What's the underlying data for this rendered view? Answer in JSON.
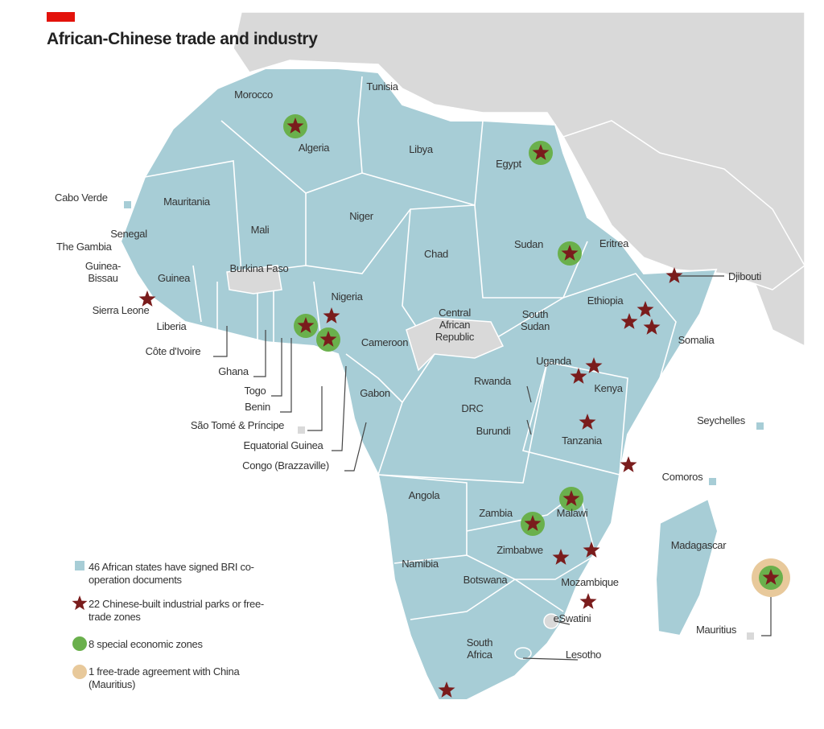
{
  "title": "African-Chinese trade and industry",
  "labels": [
    "Morocco",
    "Tunisia",
    "Algeria",
    "Libya",
    "Egypt",
    "Cabo Verde",
    "Mauritania",
    "Mali",
    "Senegal",
    "The Gambia",
    "Guinea-Bissau",
    "Niger",
    "Chad",
    "Sudan",
    "Eritrea",
    "Djibouti",
    "Burkina Faso",
    "Guinea",
    "Sierra Leone",
    "Nigeria",
    "Liberia",
    "Central African Republic",
    "South Sudan",
    "Ethiopia",
    "Somalia",
    "Côte d'Ivoire",
    "Cameroon",
    "Ghana",
    "Uganda",
    "Togo",
    "Kenya",
    "Rwanda",
    "Benin",
    "Gabon",
    "DRC",
    "Burundi",
    "Seychelles",
    "São Tomé & Príncipe",
    "Tanzania",
    "Equatorial Guinea",
    "Congo (Brazzaville)",
    "Comoros",
    "Angola",
    "Zambia",
    "Malawi",
    "Madagascar",
    "Zimbabwe",
    "Namibia",
    "Botswana",
    "Mozambique",
    "eSwatini",
    "Mauritius",
    "South Africa",
    "Lesotho"
  ],
  "legend": [
    "46 African states have signed BRI co-operation documents",
    "22 Chinese-built industrial parks or free-trade zones",
    "8 special economic zones",
    "1 free-trade agreement with China (Mauritius)"
  ]
}
